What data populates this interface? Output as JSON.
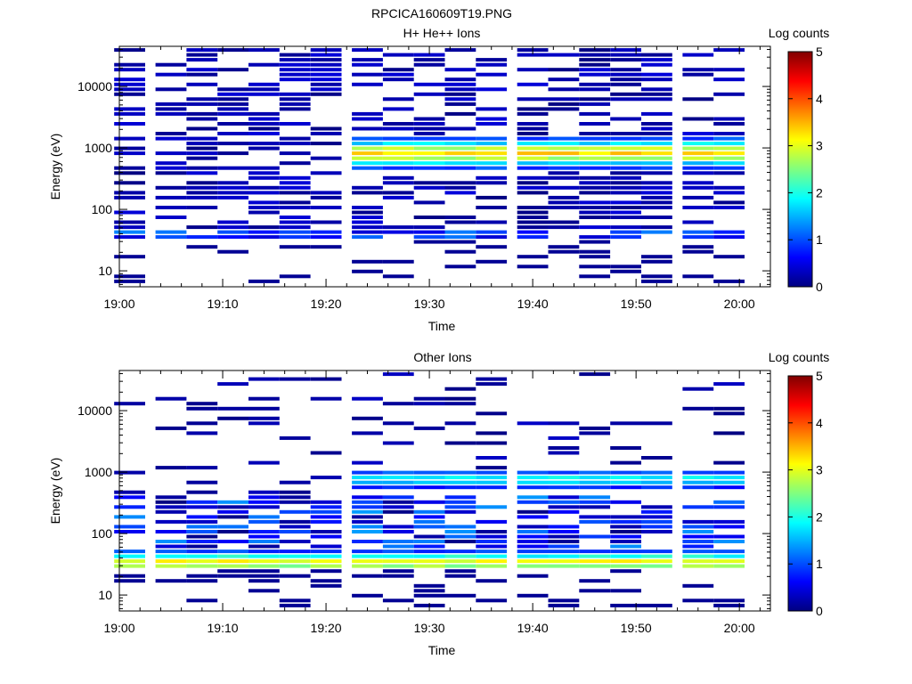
{
  "figure_title": "RPCICA160609T19.PNG",
  "chart_data": [
    {
      "type": "heatmap",
      "title": "H+ He++ Ions",
      "xlabel": "Time",
      "ylabel": "Energy (eV)",
      "y_scale": "log",
      "ylim": [
        5.5,
        45000
      ],
      "xlim": [
        "19:00",
        "20:03"
      ],
      "x_ticks": [
        "19:00",
        "19:10",
        "19:20",
        "19:30",
        "19:40",
        "19:50",
        "20:00"
      ],
      "y_ticks": [
        "10",
        "100",
        "1000",
        "10000"
      ],
      "colorbar": {
        "label": "Log counts",
        "range": [
          0,
          5
        ],
        "ticks": [
          "0",
          "1",
          "2",
          "3",
          "4",
          "5"
        ]
      },
      "time_bins": [
        "19:01",
        "19:05",
        "19:08",
        "19:11",
        "19:14",
        "19:17",
        "19:20",
        "19:24",
        "19:27",
        "19:30",
        "19:33",
        "19:36",
        "19:40",
        "19:43",
        "19:46",
        "19:49",
        "19:52",
        "19:56",
        "19:59"
      ],
      "features": [
        {
          "name": "main band",
          "energy_range_eV": [
            450,
            1400
          ],
          "peak_energy_eV": 800,
          "from": "19:21",
          "peak_log_counts": 3.3
        },
        {
          "name": "low band",
          "energy_range_eV": [
            30,
            42
          ],
          "peak_log_counts": 1.3
        }
      ]
    },
    {
      "type": "heatmap",
      "title": "Other Ions",
      "xlabel": "Time",
      "ylabel": "Energy (eV)",
      "y_scale": "log",
      "ylim": [
        5.5,
        45000
      ],
      "xlim": [
        "19:00",
        "20:03"
      ],
      "x_ticks": [
        "19:00",
        "19:10",
        "19:20",
        "19:30",
        "19:40",
        "19:50",
        "20:00"
      ],
      "y_ticks": [
        "10",
        "100",
        "1000",
        "10000"
      ],
      "colorbar": {
        "label": "Log counts",
        "range": [
          0,
          5
        ],
        "ticks": [
          "0",
          "1",
          "2",
          "3",
          "4",
          "5"
        ]
      },
      "time_bins": [
        "19:01",
        "19:05",
        "19:08",
        "19:11",
        "19:14",
        "19:17",
        "19:20",
        "19:24",
        "19:27",
        "19:30",
        "19:33",
        "19:36",
        "19:40",
        "19:43",
        "19:46",
        "19:49",
        "19:52",
        "19:56",
        "19:59"
      ],
      "features": [
        {
          "name": "low band",
          "energy_range_eV": [
            24,
            52
          ],
          "peak_energy_eV": 33,
          "peak_log_counts": 3.1
        },
        {
          "name": "upper band",
          "energy_range_eV": [
            550,
            1100
          ],
          "peak_energy_eV": 750,
          "from": "19:21",
          "peak_log_counts": 1.9
        },
        {
          "name": "mid range",
          "energy_range_eV": [
            60,
            400
          ],
          "peak_log_counts": 1.4
        }
      ]
    }
  ],
  "colors": {
    "colormap": [
      "#000080",
      "#0000ff",
      "#00ffff",
      "#ffff00",
      "#ff0000",
      "#800000"
    ],
    "background": "#ffffff"
  }
}
